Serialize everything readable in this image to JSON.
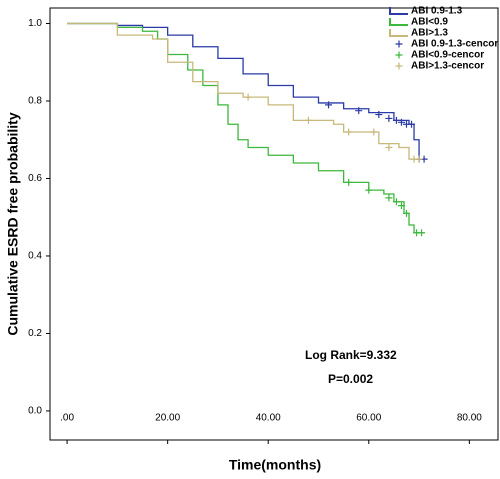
{
  "chart_data": {
    "type": "km",
    "x_label": "Time(months)",
    "y_label": "Cumulative ESRD free probability",
    "xlim": [
      -3.4,
      85.7
    ],
    "ylim": [
      -0.075,
      1.04
    ],
    "xticks": [
      {
        "value": 0,
        "label": ".00"
      },
      {
        "value": 20,
        "label": "20.00"
      },
      {
        "value": 40,
        "label": "40.00"
      },
      {
        "value": 60,
        "label": "60.00"
      },
      {
        "value": 80,
        "label": "80.00"
      }
    ],
    "yticks": [
      {
        "value": 0,
        "label": "0.0"
      },
      0.2,
      0.4,
      0.6,
      0.8,
      {
        "value": 1,
        "label": "1.0"
      }
    ],
    "annotations": [
      "Log Rank=9.332",
      "P=0.002"
    ],
    "series": [
      {
        "name": "ABI 0.9-1.3",
        "color": "#2a3aa6",
        "marker": "step",
        "x": [
          0,
          8,
          10,
          15,
          20,
          25,
          30,
          35,
          40,
          45,
          50,
          55,
          60,
          65,
          68,
          69,
          70,
          71
        ],
        "values": [
          1,
          1,
          0.995,
          0.99,
          0.97,
          0.94,
          0.91,
          0.87,
          0.84,
          0.81,
          0.795,
          0.78,
          0.77,
          0.75,
          0.74,
          0.7,
          0.65,
          0.65
        ]
      },
      {
        "name": "ABI<0.9",
        "color": "#3cb83c",
        "marker": "step",
        "x": [
          0,
          8,
          10,
          15,
          18,
          20,
          24,
          27,
          30,
          32,
          34,
          36,
          40,
          45,
          50,
          55,
          60,
          63,
          65,
          67,
          68,
          69,
          71
        ],
        "values": [
          1,
          1,
          0.99,
          0.98,
          0.96,
          0.92,
          0.88,
          0.84,
          0.79,
          0.74,
          0.7,
          0.68,
          0.66,
          0.64,
          0.62,
          0.59,
          0.57,
          0.56,
          0.54,
          0.51,
          0.48,
          0.46,
          0.46
        ]
      },
      {
        "name": "ABI>1.3",
        "color": "#c8b87a",
        "marker": "step",
        "x": [
          0,
          10,
          17,
          20,
          25,
          28,
          30,
          35,
          40,
          45,
          50,
          53,
          55,
          60,
          62,
          66,
          68,
          71
        ],
        "values": [
          1,
          0.97,
          0.96,
          0.9,
          0.85,
          0.85,
          0.82,
          0.81,
          0.79,
          0.75,
          0.75,
          0.74,
          0.72,
          0.72,
          0.69,
          0.68,
          0.65,
          0.65
        ]
      },
      {
        "name": "ABI 0.9-1.3-cencor",
        "color": "#2a3aa6",
        "marker": "plus",
        "x": [
          52,
          58,
          62,
          64,
          65.5,
          66.5,
          67.5,
          68.5,
          70,
          71
        ],
        "values": [
          0.79,
          0.775,
          0.765,
          0.755,
          0.75,
          0.745,
          0.74,
          0.74,
          0.65,
          0.65
        ]
      },
      {
        "name": "ABI<0.9-cencor",
        "color": "#3cb83c",
        "marker": "plus",
        "x": [
          56,
          60,
          64,
          65.5,
          66.5,
          67.5,
          69.5,
          70.5
        ],
        "values": [
          0.59,
          0.57,
          0.55,
          0.54,
          0.53,
          0.51,
          0.46,
          0.46
        ]
      },
      {
        "name": "ABI>1.3-cencor",
        "color": "#c8b87a",
        "marker": "plus",
        "x": [
          36,
          48,
          56,
          61,
          64,
          69,
          70
        ],
        "values": [
          0.81,
          0.75,
          0.72,
          0.72,
          0.68,
          0.65,
          0.65
        ]
      }
    ]
  }
}
